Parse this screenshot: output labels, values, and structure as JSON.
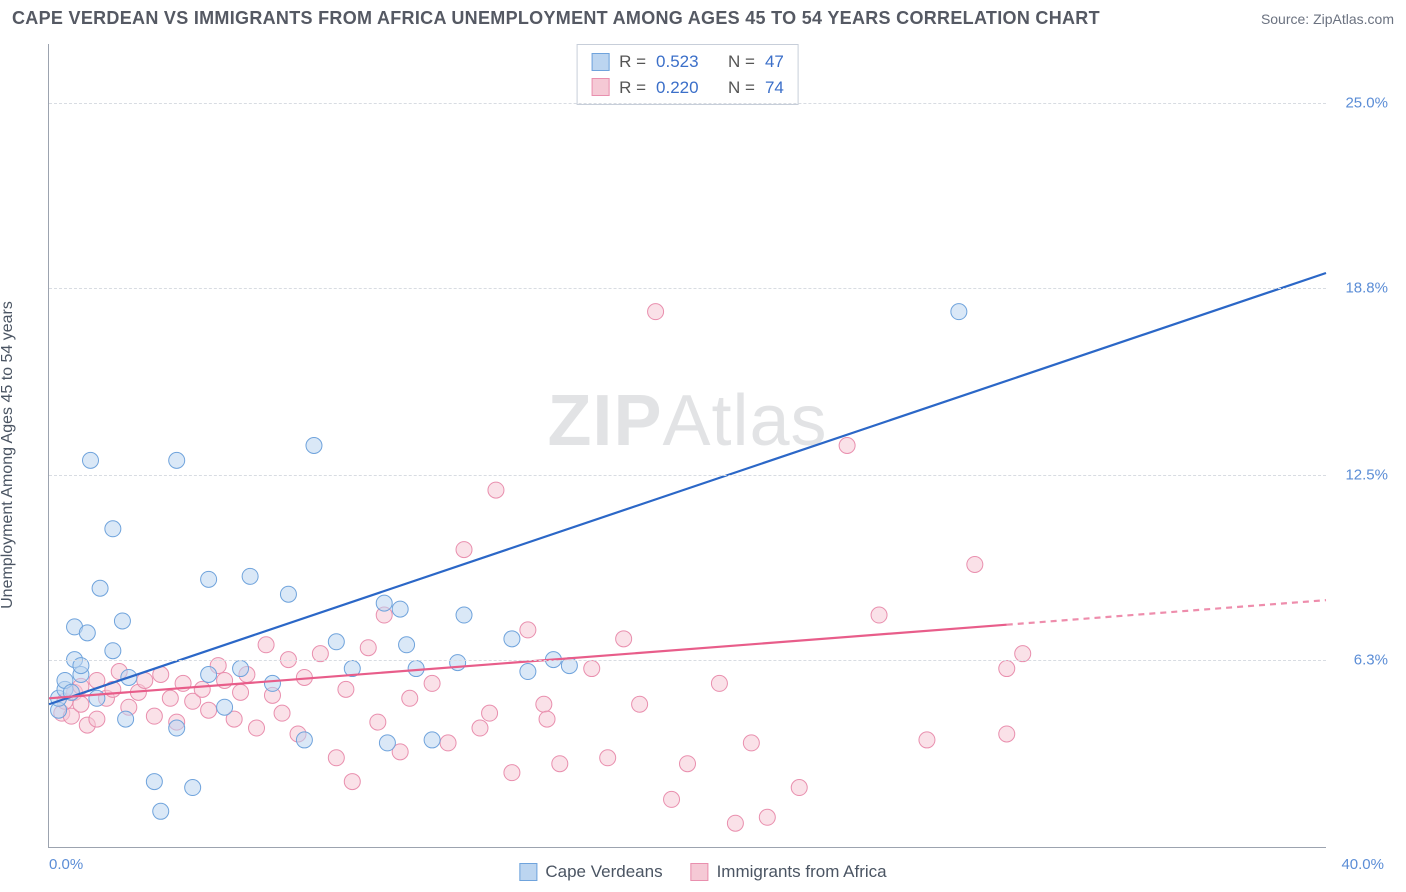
{
  "title": "CAPE VERDEAN VS IMMIGRANTS FROM AFRICA UNEMPLOYMENT AMONG AGES 45 TO 54 YEARS CORRELATION CHART",
  "source": "Source: ZipAtlas.com",
  "watermark_bold": "ZIP",
  "watermark_rest": "Atlas",
  "y_axis_label": "Unemployment Among Ages 45 to 54 years",
  "chart": {
    "type": "scatter",
    "xlim": [
      0,
      40
    ],
    "ylim": [
      0,
      27
    ],
    "x_ticks": [
      {
        "v": 0,
        "label": "0.0%"
      },
      {
        "v": 40,
        "label": "40.0%"
      }
    ],
    "y_ticks": [
      {
        "v": 6.3,
        "label": "6.3%"
      },
      {
        "v": 12.5,
        "label": "12.5%"
      },
      {
        "v": 18.8,
        "label": "18.8%"
      },
      {
        "v": 25.0,
        "label": "25.0%"
      }
    ],
    "grid_color": "#d8dce2",
    "background_color": "#ffffff",
    "marker_radius": 8,
    "marker_opacity": 0.55,
    "line_width": 2.2,
    "series": [
      {
        "name": "Cape Verdeans",
        "color_fill": "#bcd5f0",
        "color_stroke": "#6fa3dc",
        "line_color": "#2b67c7",
        "R": "0.523",
        "N": "47",
        "trend": {
          "x1": 0,
          "y1": 4.8,
          "x2": 40,
          "y2": 19.3,
          "dash_from_x": 40
        },
        "points": [
          [
            0.3,
            4.6
          ],
          [
            0.3,
            5.0
          ],
          [
            0.5,
            5.3
          ],
          [
            0.5,
            5.6
          ],
          [
            0.7,
            5.2
          ],
          [
            0.8,
            7.4
          ],
          [
            0.8,
            6.3
          ],
          [
            1.0,
            5.8
          ],
          [
            1.0,
            6.1
          ],
          [
            1.2,
            7.2
          ],
          [
            1.3,
            13.0
          ],
          [
            1.5,
            5.0
          ],
          [
            1.6,
            8.7
          ],
          [
            2.0,
            10.7
          ],
          [
            2.0,
            6.6
          ],
          [
            2.3,
            7.6
          ],
          [
            2.4,
            4.3
          ],
          [
            2.5,
            5.7
          ],
          [
            3.3,
            2.2
          ],
          [
            3.5,
            1.2
          ],
          [
            4.0,
            4.0
          ],
          [
            4.0,
            13.0
          ],
          [
            4.5,
            2.0
          ],
          [
            5.0,
            9.0
          ],
          [
            5.0,
            5.8
          ],
          [
            5.5,
            4.7
          ],
          [
            6.0,
            6.0
          ],
          [
            6.3,
            9.1
          ],
          [
            7.0,
            5.5
          ],
          [
            7.5,
            8.5
          ],
          [
            8.0,
            3.6
          ],
          [
            8.3,
            13.5
          ],
          [
            9.0,
            6.9
          ],
          [
            9.5,
            6.0
          ],
          [
            10.5,
            8.2
          ],
          [
            10.6,
            3.5
          ],
          [
            11.0,
            8.0
          ],
          [
            11.2,
            6.8
          ],
          [
            11.5,
            6.0
          ],
          [
            12.0,
            3.6
          ],
          [
            12.8,
            6.2
          ],
          [
            13.0,
            7.8
          ],
          [
            14.5,
            7.0
          ],
          [
            15.0,
            5.9
          ],
          [
            15.8,
            6.3
          ],
          [
            16.3,
            6.1
          ],
          [
            28.5,
            18.0
          ]
        ]
      },
      {
        "name": "Immigrants from Africa",
        "color_fill": "#f5c9d5",
        "color_stroke": "#e98fae",
        "line_color": "#e85d8a",
        "R": "0.220",
        "N": "74",
        "trend": {
          "x1": 0,
          "y1": 5.0,
          "x2": 40,
          "y2": 8.3,
          "dash_from_x": 30
        },
        "points": [
          [
            0.4,
            4.5
          ],
          [
            0.5,
            4.9
          ],
          [
            0.7,
            4.4
          ],
          [
            0.8,
            5.2
          ],
          [
            1.0,
            4.8
          ],
          [
            1.0,
            5.4
          ],
          [
            1.2,
            4.1
          ],
          [
            1.5,
            5.6
          ],
          [
            1.5,
            4.3
          ],
          [
            1.8,
            5.0
          ],
          [
            2.0,
            5.3
          ],
          [
            2.2,
            5.9
          ],
          [
            2.5,
            4.7
          ],
          [
            2.8,
            5.2
          ],
          [
            3.0,
            5.6
          ],
          [
            3.3,
            4.4
          ],
          [
            3.5,
            5.8
          ],
          [
            3.8,
            5.0
          ],
          [
            4.0,
            4.2
          ],
          [
            4.2,
            5.5
          ],
          [
            4.5,
            4.9
          ],
          [
            4.8,
            5.3
          ],
          [
            5.0,
            4.6
          ],
          [
            5.3,
            6.1
          ],
          [
            5.5,
            5.6
          ],
          [
            5.8,
            4.3
          ],
          [
            6.0,
            5.2
          ],
          [
            6.2,
            5.8
          ],
          [
            6.5,
            4.0
          ],
          [
            6.8,
            6.8
          ],
          [
            7.0,
            5.1
          ],
          [
            7.3,
            4.5
          ],
          [
            7.5,
            6.3
          ],
          [
            7.8,
            3.8
          ],
          [
            8.0,
            5.7
          ],
          [
            8.5,
            6.5
          ],
          [
            9.0,
            3.0
          ],
          [
            9.3,
            5.3
          ],
          [
            9.5,
            2.2
          ],
          [
            10.0,
            6.7
          ],
          [
            10.3,
            4.2
          ],
          [
            10.5,
            7.8
          ],
          [
            11.0,
            3.2
          ],
          [
            11.3,
            5.0
          ],
          [
            12.0,
            5.5
          ],
          [
            12.5,
            3.5
          ],
          [
            13.0,
            10.0
          ],
          [
            13.5,
            4.0
          ],
          [
            13.8,
            4.5
          ],
          [
            14.0,
            12.0
          ],
          [
            14.5,
            2.5
          ],
          [
            15.0,
            7.3
          ],
          [
            15.5,
            4.8
          ],
          [
            15.6,
            4.3
          ],
          [
            16.0,
            2.8
          ],
          [
            17.0,
            6.0
          ],
          [
            17.5,
            3.0
          ],
          [
            18.0,
            7.0
          ],
          [
            18.5,
            4.8
          ],
          [
            19.0,
            18.0
          ],
          [
            19.5,
            1.6
          ],
          [
            20.0,
            2.8
          ],
          [
            21.0,
            5.5
          ],
          [
            21.5,
            0.8
          ],
          [
            22.0,
            3.5
          ],
          [
            22.5,
            1.0
          ],
          [
            23.5,
            2.0
          ],
          [
            25.0,
            13.5
          ],
          [
            26.0,
            7.8
          ],
          [
            27.5,
            3.6
          ],
          [
            29.0,
            9.5
          ],
          [
            30.0,
            6.0
          ],
          [
            30.5,
            6.5
          ],
          [
            30.0,
            3.8
          ]
        ]
      }
    ]
  },
  "stats_labels": {
    "R": "R =",
    "N": "N ="
  }
}
